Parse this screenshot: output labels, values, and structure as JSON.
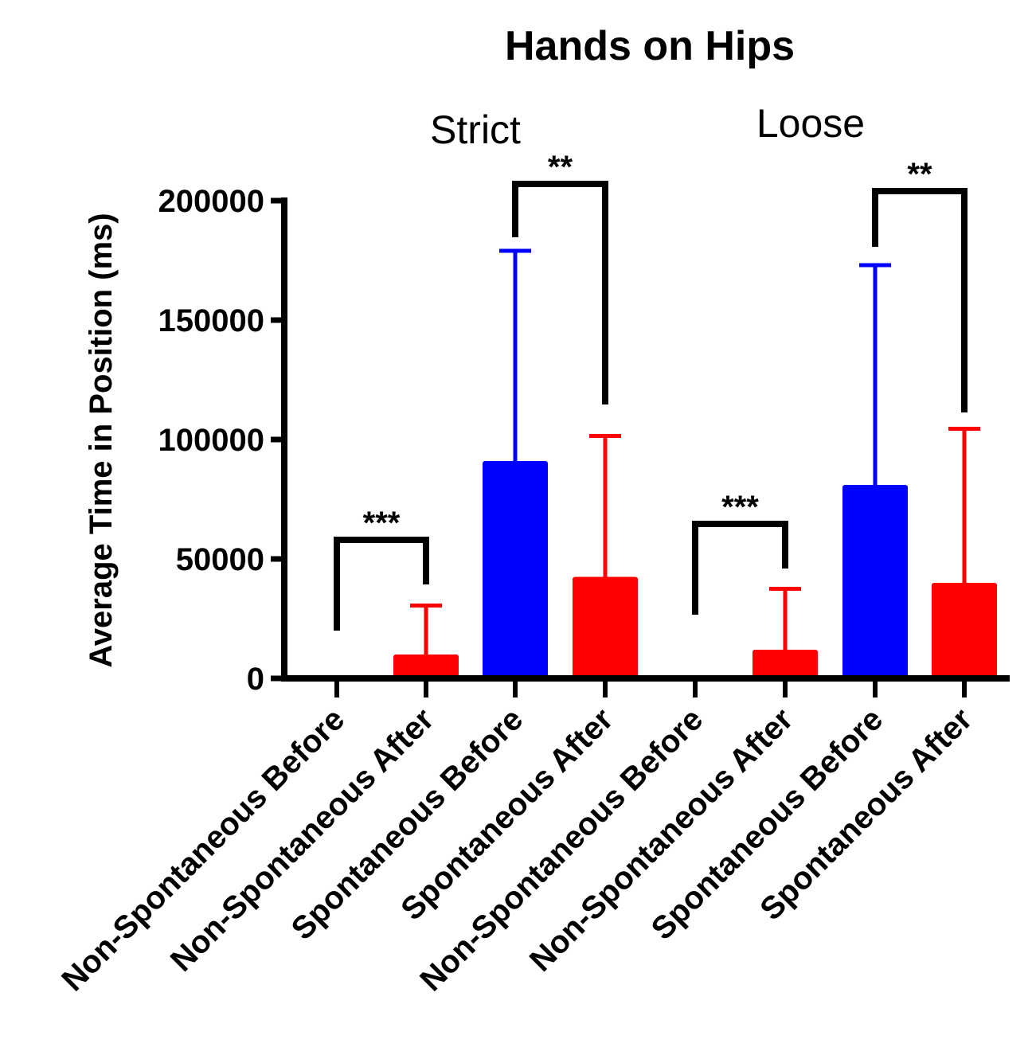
{
  "chart_data": {
    "type": "bar",
    "title": "Hands on Hips",
    "ylabel": "Average Time in Position (ms)",
    "xlabel": "",
    "ylim": [
      0,
      200000
    ],
    "yticks": [
      0,
      50000,
      100000,
      150000,
      200000
    ],
    "ytick_labels": [
      "0",
      "50000",
      "100000",
      "150000",
      "200000"
    ],
    "groups": [
      {
        "label": "Strict",
        "bar_range": [
          0,
          3
        ]
      },
      {
        "label": "Loose",
        "bar_range": [
          4,
          7
        ]
      }
    ],
    "categories": [
      "Non-Spontaneous Before",
      "Non-Spontaneous After",
      "Spontaneous Before",
      "Spontaneous After",
      "Non-Spontaneous Before",
      "Non-Spontaneous After",
      "Spontaneous Before",
      "Spontaneous After"
    ],
    "values": [
      0,
      10000,
      91000,
      42500,
      0,
      12000,
      81000,
      40000
    ],
    "error_upper": [
      0,
      30500,
      179000,
      101500,
      0,
      37500,
      173000,
      104500
    ],
    "bar_colors": [
      "#ff0000",
      "#ff0000",
      "#0000ff",
      "#ff0000",
      "#ff0000",
      "#ff0000",
      "#0000ff",
      "#ff0000"
    ],
    "significance": [
      {
        "bars": [
          0,
          1
        ],
        "label": "***"
      },
      {
        "bars": [
          2,
          3
        ],
        "label": "**"
      },
      {
        "bars": [
          4,
          5
        ],
        "label": "***"
      },
      {
        "bars": [
          6,
          7
        ],
        "label": "**"
      }
    ],
    "grid": false,
    "legend": "none"
  }
}
